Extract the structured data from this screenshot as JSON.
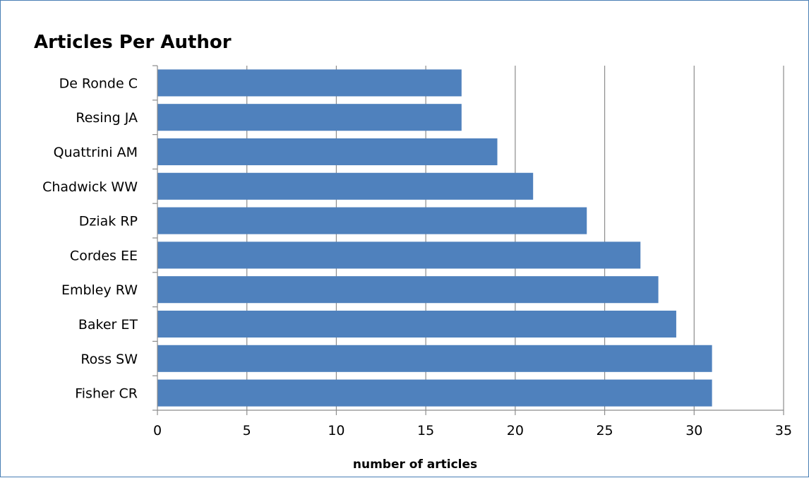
{
  "chart_data": {
    "type": "bar",
    "orientation": "horizontal",
    "title": "Articles Per Author",
    "xlabel": "number of articles",
    "ylabel": "",
    "categories": [
      "De Ronde C",
      "Resing JA",
      "Quattrini AM",
      "Chadwick WW",
      "Dziak RP",
      "Cordes EE",
      "Embley RW",
      "Baker ET",
      "Ross SW",
      "Fisher CR"
    ],
    "values": [
      17,
      17,
      19,
      21,
      24,
      27,
      28,
      29,
      31,
      31
    ],
    "xlim": [
      0,
      35
    ],
    "x_ticks": [
      "0",
      "5",
      "10",
      "15",
      "20",
      "25",
      "30",
      "35"
    ],
    "grid": "vertical",
    "legend": "none",
    "bar_color": "#4f81bd"
  }
}
